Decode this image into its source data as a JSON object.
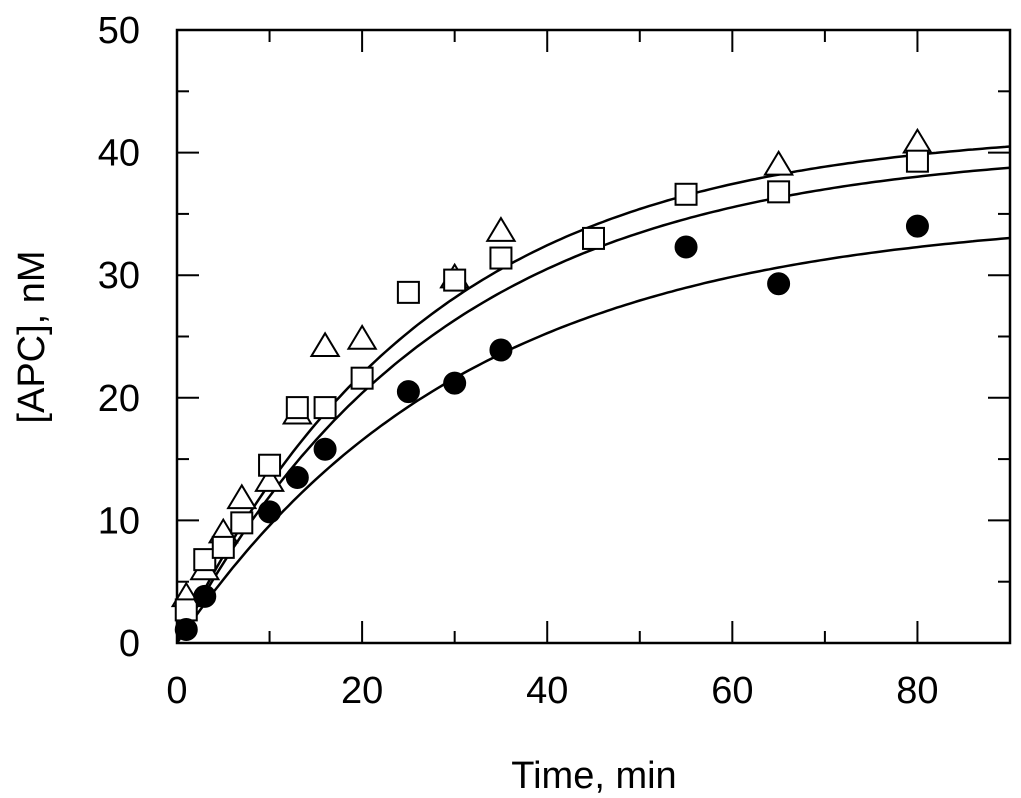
{
  "chart_data": {
    "type": "scatter",
    "title": "",
    "xlabel": "Time, min",
    "ylabel": "[APC], nM",
    "xlim": [
      0,
      90
    ],
    "ylim": [
      0,
      50
    ],
    "xticks": [
      0,
      20,
      40,
      60,
      80
    ],
    "yticks": [
      0,
      10,
      20,
      30,
      40,
      50
    ],
    "grid": false,
    "legend": "none",
    "colors": {
      "axis": "#000000",
      "marker_fill_open": "#ffffff",
      "marker_fill_solid": "#000000",
      "curve": "#000000"
    },
    "series": [
      {
        "name": "open-triangles",
        "marker": "triangle-open",
        "x": [
          1,
          3,
          5,
          7,
          10,
          13,
          16,
          20,
          30,
          35,
          65,
          80
        ],
        "y": [
          3.8,
          6.0,
          9.0,
          11.8,
          13.2,
          18.7,
          24.2,
          24.8,
          29.8,
          33.6,
          39.0,
          40.8
        ],
        "fit": {
          "model": "exponential-rise",
          "A": 42.0,
          "k": 0.037
        }
      },
      {
        "name": "open-squares",
        "marker": "square-open",
        "x": [
          1,
          3,
          5,
          7,
          10,
          13,
          16,
          20,
          25,
          30,
          35,
          45,
          55,
          65,
          80
        ],
        "y": [
          2.7,
          6.8,
          7.8,
          9.8,
          14.5,
          19.2,
          19.2,
          21.6,
          28.6,
          29.6,
          31.4,
          33.0,
          36.6,
          36.8,
          39.3
        ],
        "fit": {
          "model": "exponential-rise",
          "A": 40.5,
          "k": 0.035
        }
      },
      {
        "name": "filled-circles",
        "marker": "circle-filled",
        "x": [
          1,
          3,
          10,
          13,
          16,
          25,
          30,
          35,
          55,
          65,
          80
        ],
        "y": [
          1.1,
          3.8,
          10.7,
          13.5,
          15.8,
          20.5,
          21.2,
          23.9,
          32.3,
          29.3,
          34.0
        ],
        "fit": {
          "model": "exponential-rise",
          "A": 35.0,
          "k": 0.032
        }
      }
    ]
  }
}
